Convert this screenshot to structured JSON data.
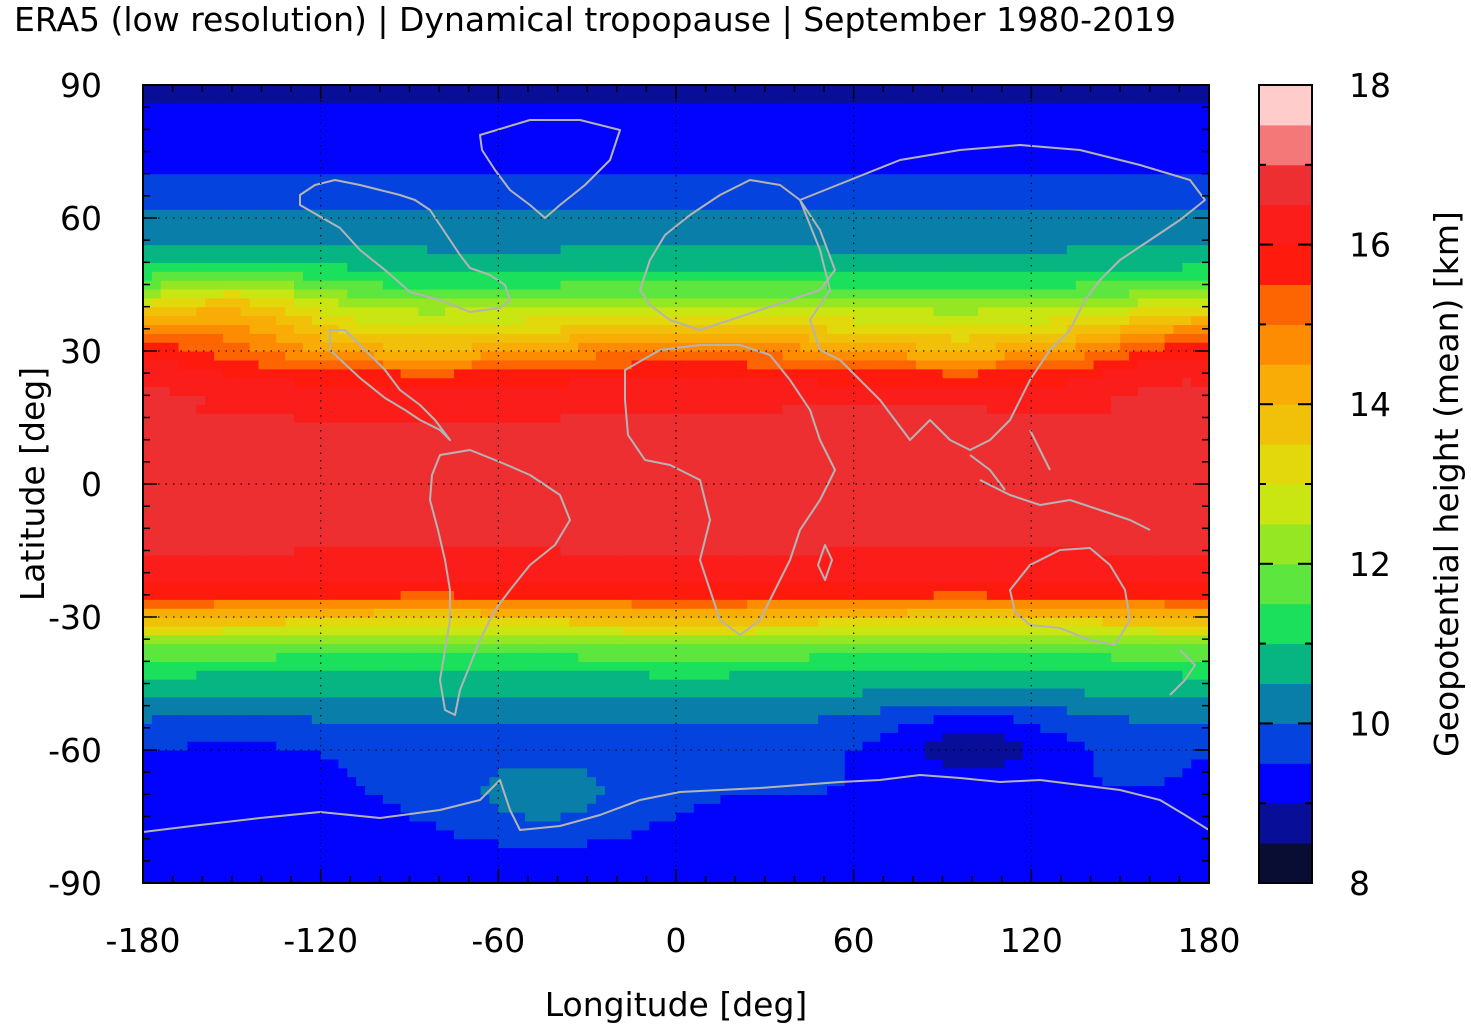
{
  "chart_data": {
    "type": "heatmap",
    "title": "ERA5 (low resolution) | Dynamical tropopause | September 1980-2019",
    "xlabel": "Longitude [deg]",
    "ylabel": "Latitude [deg]",
    "colorbar_label": "Geopotential height (mean) [km]",
    "xlim": [
      -180,
      180
    ],
    "ylim": [
      -90,
      90
    ],
    "xticks": [
      -180,
      -120,
      -60,
      0,
      60,
      120,
      180
    ],
    "xtick_labels": [
      "-180",
      "-120",
      "-60",
      "0",
      "60",
      "120",
      "180"
    ],
    "yticks": [
      -90,
      -60,
      -30,
      0,
      30,
      60,
      90
    ],
    "ytick_labels": [
      "-90",
      "-60",
      "-30",
      "0",
      "30",
      "60",
      "90"
    ],
    "grid": true,
    "colorbar": {
      "range": [
        8,
        18
      ],
      "ticks": [
        8,
        10,
        12,
        14,
        16,
        18
      ],
      "tick_labels": [
        "8",
        "10",
        "12",
        "14",
        "16",
        "18"
      ],
      "step": 0.5,
      "colors": [
        "#0a0d33",
        "#080e98",
        "#0202ff",
        "#0443dd",
        "#087ea8",
        "#06b582",
        "#1ae05b",
        "#5ce63e",
        "#95e623",
        "#c9e612",
        "#e3d80c",
        "#f0c108",
        "#f9ac05",
        "#fd8c03",
        "#fd6502",
        "#ff1a0e",
        "#fb1d1a",
        "#ed2f31",
        "#f57878",
        "#ffcccc"
      ]
    },
    "zonal_profile": {
      "lat": [
        -90,
        -80,
        -70,
        -60,
        -50,
        -40,
        -35,
        -30,
        -25,
        -20,
        -10,
        0,
        10,
        20,
        25,
        30,
        35,
        40,
        45,
        50,
        55,
        60,
        70,
        80,
        90
      ],
      "height_km": [
        9.3,
        9.4,
        9.5,
        9.6,
        10.2,
        11.3,
        12.2,
        13.8,
        15.6,
        16.4,
        16.6,
        16.6,
        16.6,
        16.4,
        15.7,
        14.6,
        13.5,
        12.5,
        11.5,
        10.8,
        10.3,
        10.1,
        9.5,
        9.3,
        8.8
      ]
    },
    "features": [
      {
        "lon": 100,
        "lat": -58,
        "height_km": 8.8
      },
      {
        "lon": 90,
        "lat": 7,
        "height_km": 16.8
      },
      {
        "lon": 65,
        "lat": 10,
        "height_km": 16.8
      },
      {
        "lon": 170,
        "lat": 30,
        "height_km": 15.4
      },
      {
        "lon": -150,
        "lat": 40,
        "height_km": 13.7
      },
      {
        "lon": -45,
        "lat": -70,
        "height_km": 10.3
      },
      {
        "lon": -150,
        "lat": -65,
        "height_km": 9.2
      }
    ]
  }
}
